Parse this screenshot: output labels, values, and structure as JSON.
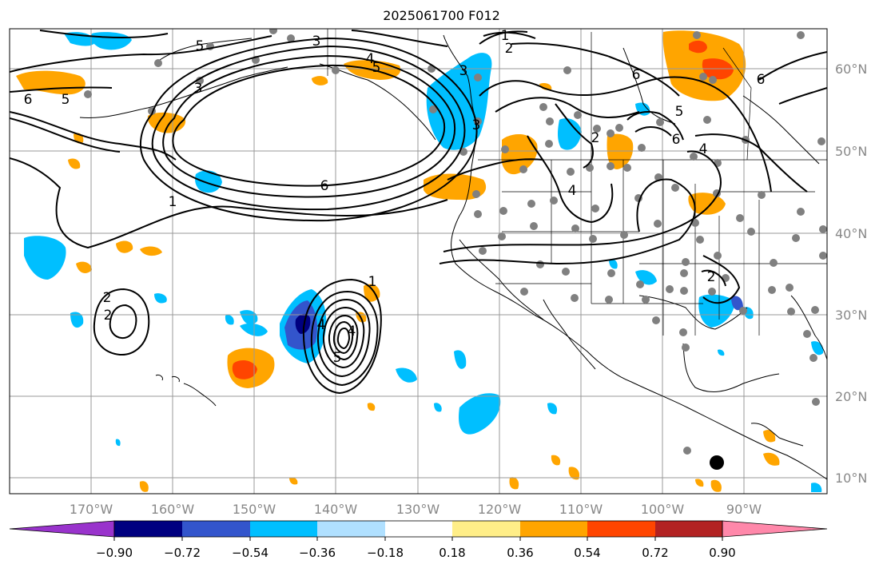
{
  "title": "2025061700 F012",
  "lon_labels": [
    "170°W",
    "160°W",
    "150°W",
    "140°W",
    "130°W",
    "120°W",
    "110°W",
    "100°W",
    "90°W"
  ],
  "lat_labels": [
    "60°N",
    "50°N",
    "40°N",
    "30°N",
    "20°N",
    "10°N"
  ],
  "colorbar": {
    "tick_labels": [
      "−0.90",
      "−0.72",
      "−0.54",
      "−0.36",
      "−0.18",
      "0.18",
      "0.36",
      "0.54",
      "0.72",
      "0.90"
    ],
    "colors": [
      "#9933cc",
      "#000080",
      "#3355cc",
      "#00bfff",
      "#b0e0ff",
      "#ffffff",
      "#ffee88",
      "#ffa500",
      "#ff4500",
      "#b22222",
      "#ff88aa"
    ]
  },
  "contour_labels": [
    "3",
    "2",
    "1",
    "4",
    "5",
    "6",
    "6",
    "5",
    "6",
    "1",
    "3",
    "2",
    "6",
    "5",
    "6",
    "4",
    "2",
    "4",
    "5",
    "4",
    "3",
    "2",
    "1",
    "2",
    "5",
    "3",
    "4"
  ],
  "colors": {
    "grid": "#999999",
    "label": "#888888",
    "contour": "#000000",
    "station": "#808080"
  }
}
